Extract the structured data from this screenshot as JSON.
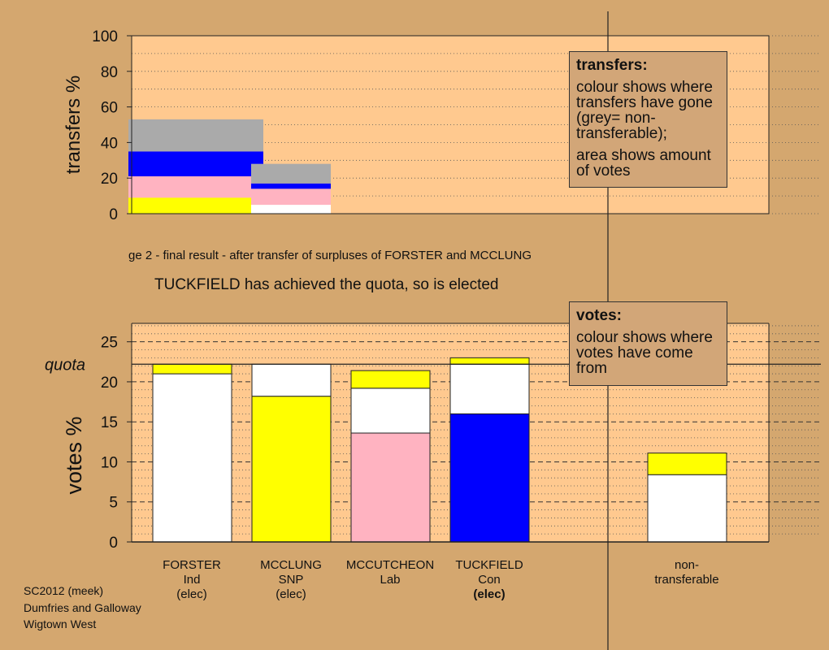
{
  "stage_text": "ge 2 - final result - after transfer of surpluses of FORSTER and MCCLUNG",
  "elected_text": "TUCKFIELD has achieved the quota, so is elected",
  "transfers_legend": {
    "heading": "transfers:",
    "text1": "colour shows where transfers have gone (grey= non-transferable);",
    "text2": "area shows amount of votes"
  },
  "votes_legend": {
    "heading": "votes:",
    "text1": "colour shows where votes have come from"
  },
  "footer": {
    "line1": "SC2012 (meek)",
    "line2": "Dumfries and Galloway",
    "line3": "Wigtown West"
  },
  "candidates": [
    {
      "name": "FORSTER",
      "party": "Ind",
      "status": "(elec)",
      "status_bold": false
    },
    {
      "name": "MCCLUNG",
      "party": "SNP",
      "status": "(elec)",
      "status_bold": false
    },
    {
      "name": "MCCUTCHEON",
      "party": "Lab",
      "status": "",
      "status_bold": false
    },
    {
      "name": "TUCKFIELD",
      "party": "Con",
      "status": "(elec)",
      "status_bold": true
    },
    {
      "name": "non-",
      "party": "transferable",
      "status": "",
      "status_bold": false
    }
  ],
  "colors": {
    "background": "#d4a76f",
    "plot_bg": "#ffc98f",
    "white": "#ffffff",
    "yellow": "#ffff00",
    "pink": "#ffb3c1",
    "blue": "#0000ff",
    "grey": "#aaaaaa"
  },
  "chart_data": [
    {
      "type": "bar",
      "ylabel": "transfers %",
      "ylim": [
        0,
        100
      ],
      "yticks": [
        0,
        20,
        40,
        60,
        80,
        100
      ],
      "bars": [
        {
          "name": "FORSTER surplus",
          "segments": [
            {
              "color": "yellow",
              "from": 0,
              "to": 9
            },
            {
              "color": "pink",
              "from": 9,
              "to": 21
            },
            {
              "color": "blue",
              "from": 21,
              "to": 35
            },
            {
              "color": "grey",
              "from": 35,
              "to": 53
            }
          ]
        },
        {
          "name": "MCCLUNG surplus",
          "segments": [
            {
              "color": "white",
              "from": 0,
              "to": 5
            },
            {
              "color": "pink",
              "from": 5,
              "to": 14
            },
            {
              "color": "blue",
              "from": 14,
              "to": 17
            },
            {
              "color": "grey",
              "from": 17,
              "to": 28
            }
          ]
        }
      ]
    },
    {
      "type": "bar",
      "ylabel": "votes %",
      "ylim": [
        0,
        27.3
      ],
      "yticks": [
        0,
        5,
        10,
        15,
        20,
        25
      ],
      "quota": 22.2,
      "quota_label": "quota",
      "categories": [
        "FORSTER Ind (elec)",
        "MCCLUNG SNP (elec)",
        "MCCUTCHEON Lab",
        "TUCKFIELD Con (elec)",
        "non-transferable"
      ],
      "bars": [
        {
          "segments": [
            {
              "color": "white",
              "from": 0,
              "to": 21.0
            },
            {
              "color": "yellow",
              "from": 21.0,
              "to": 22.2
            }
          ]
        },
        {
          "segments": [
            {
              "color": "yellow",
              "from": 0,
              "to": 18.2
            },
            {
              "color": "white",
              "from": 18.2,
              "to": 22.2
            }
          ]
        },
        {
          "segments": [
            {
              "color": "pink",
              "from": 0,
              "to": 13.6
            },
            {
              "color": "white",
              "from": 13.6,
              "to": 19.2
            },
            {
              "color": "yellow",
              "from": 19.2,
              "to": 21.4
            }
          ]
        },
        {
          "segments": [
            {
              "color": "blue",
              "from": 0,
              "to": 16.0
            },
            {
              "color": "white",
              "from": 16.0,
              "to": 22.2
            },
            {
              "color": "yellow",
              "from": 22.2,
              "to": 23.0
            }
          ]
        },
        {
          "segments": [
            {
              "color": "white",
              "from": 0,
              "to": 8.4
            },
            {
              "color": "yellow",
              "from": 8.4,
              "to": 11.1
            }
          ]
        }
      ]
    }
  ]
}
